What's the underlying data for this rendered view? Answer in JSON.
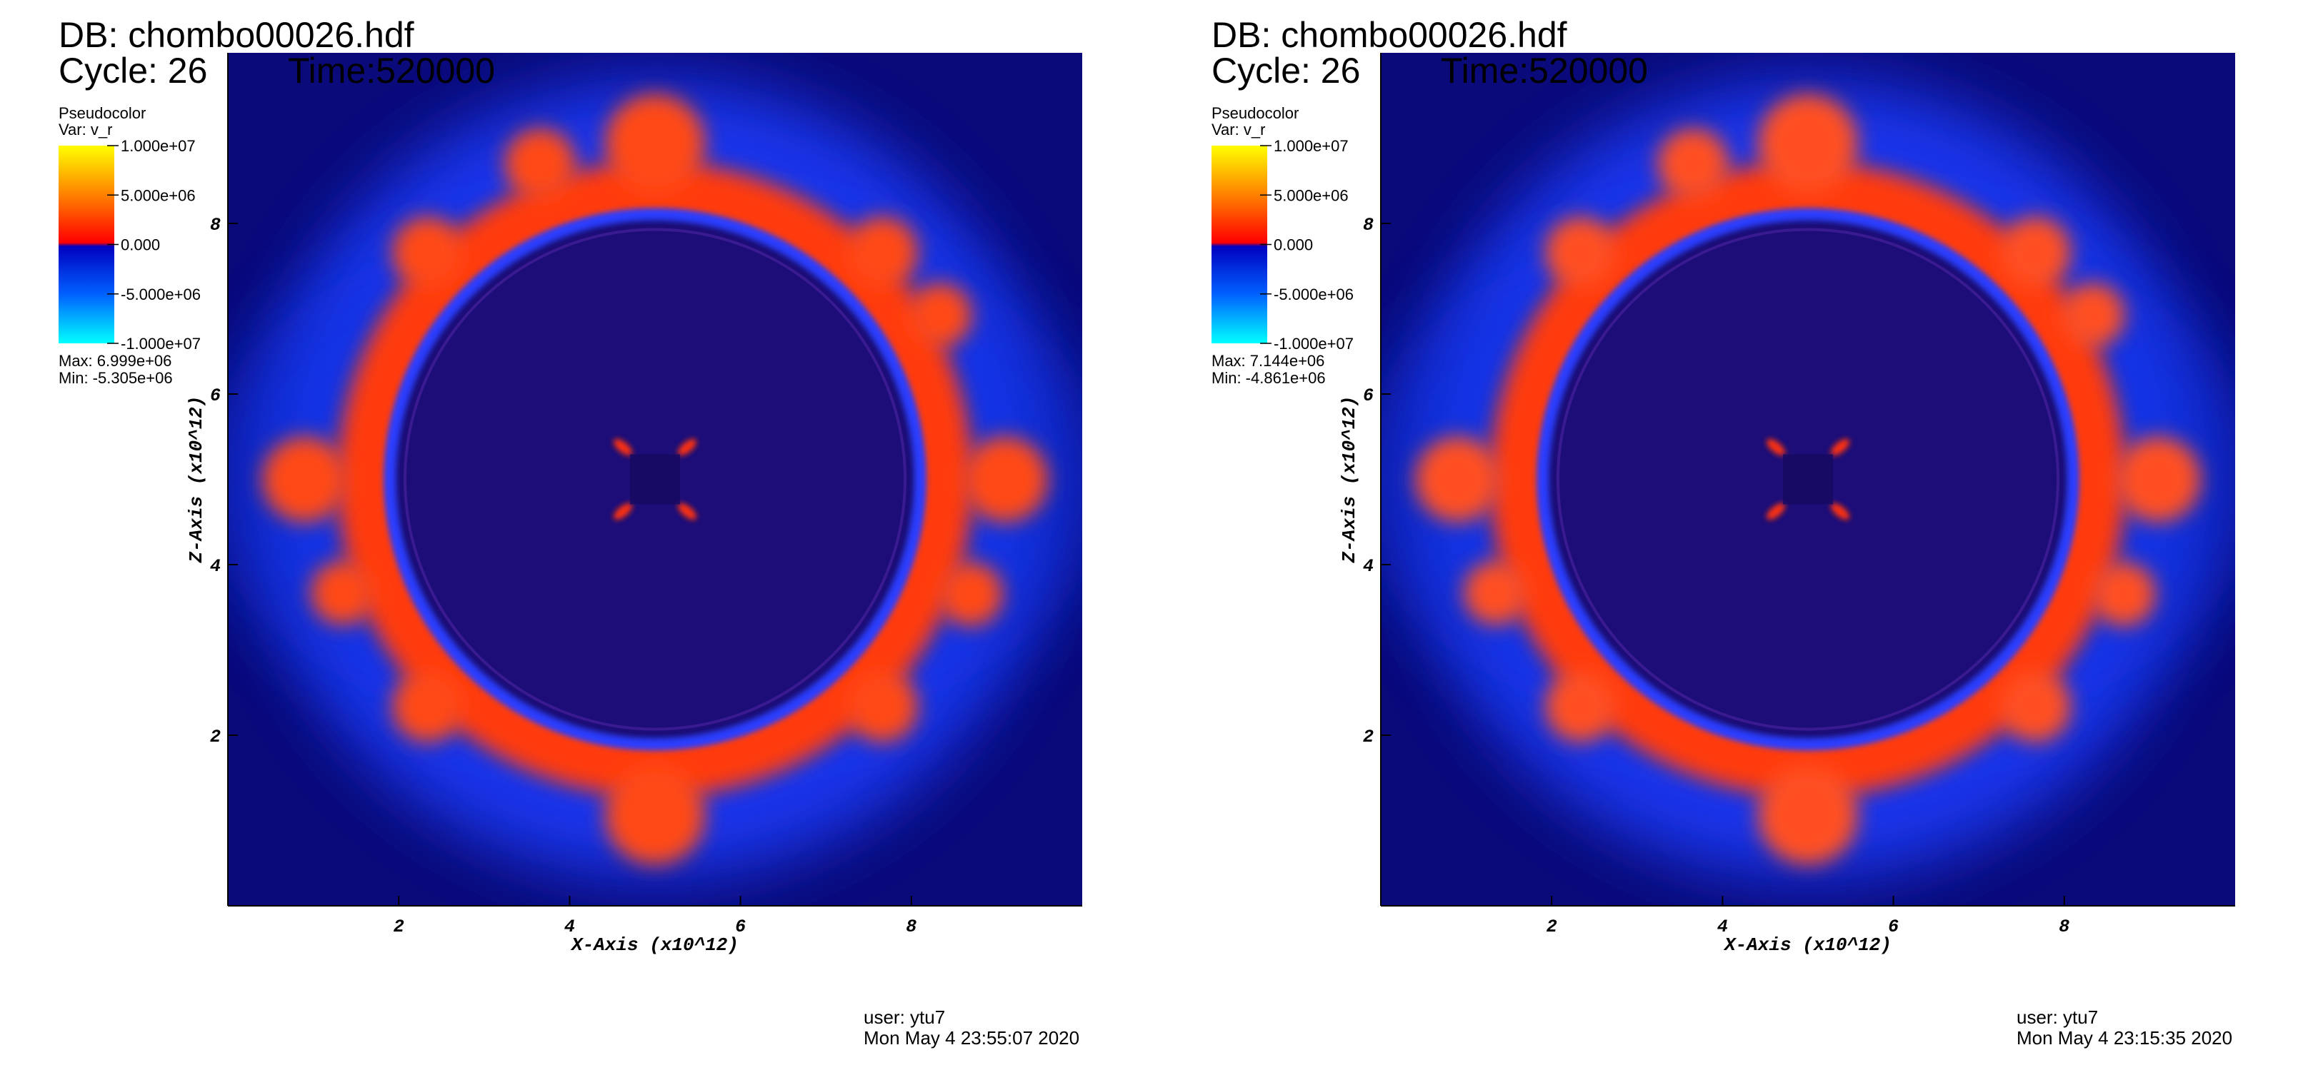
{
  "panels": [
    {
      "db": "DB: chombo00026.hdf",
      "cycle": "Cycle: 26",
      "time": "Time:520000",
      "legend": {
        "title": "Pseudocolor",
        "var": "Var: v_r",
        "labels": [
          "1.000e+07",
          "5.000e+06",
          "0.000",
          "-5.000e+06",
          "-1.000e+07"
        ],
        "max": "Max:  6.999e+06",
        "min": "Min: -5.305e+06"
      },
      "xlabel": "X-Axis (x10^12)",
      "ylabel": "Z-Axis (x10^12)",
      "xlim": [
        0,
        10
      ],
      "ylim": [
        0,
        10
      ],
      "xticks": [
        2,
        4,
        6,
        8
      ],
      "yticks": [
        2,
        4,
        6,
        8
      ],
      "user": "user: ytu7",
      "date": "Mon May  4 23:55:07 2020"
    },
    {
      "db": "DB: chombo00026.hdf",
      "cycle": "Cycle: 26",
      "time": "Time:520000",
      "legend": {
        "title": "Pseudocolor",
        "var": "Var: v_r",
        "labels": [
          "1.000e+07",
          "5.000e+06",
          "0.000",
          "-5.000e+06",
          "-1.000e+07"
        ],
        "max": "Max:  7.144e+06",
        "min": "Min: -4.861e+06"
      },
      "xlabel": "X-Axis (x10^12)",
      "ylabel": "Z-Axis (x10^12)",
      "xlim": [
        0,
        10
      ],
      "ylim": [
        0,
        10
      ],
      "xticks": [
        2,
        4,
        6,
        8
      ],
      "yticks": [
        2,
        4,
        6,
        8
      ],
      "user": "user: ytu7",
      "date": "Mon May  4 23:15:35 2020"
    }
  ]
}
